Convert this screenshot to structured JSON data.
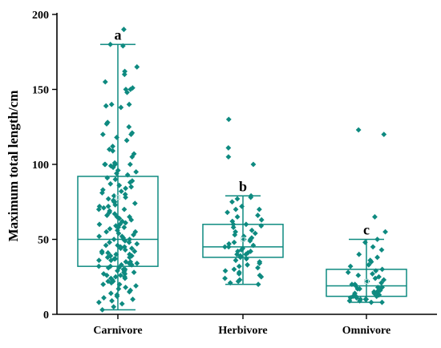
{
  "colors": {
    "series": "#0e8a80",
    "mean_marker": "#b9dcd8",
    "axis": "#000000"
  },
  "chart_data": {
    "type": "boxplot",
    "title": "",
    "xlabel": "",
    "ylabel": "Maximum total length/cm",
    "ylim": [
      0,
      200
    ],
    "yticks": [
      0,
      50,
      100,
      150,
      200
    ],
    "categories": [
      "Carnivore",
      "Herbivore",
      "Omnivore"
    ],
    "groups": [
      {
        "name": "Carnivore",
        "letter": "a",
        "whisker_low": 3,
        "q1": 32,
        "median": 50,
        "q3": 92,
        "whisker_high": 180,
        "mean": 78,
        "points": [
          190,
          180,
          179,
          165,
          162,
          160,
          155,
          151,
          150,
          150,
          148,
          140,
          140,
          139,
          138,
          128,
          127,
          125,
          121,
          120,
          120,
          118,
          116,
          112,
          110,
          109,
          107,
          105,
          101,
          100,
          100,
          100,
          100,
          99,
          98,
          96,
          95,
          94,
          93,
          91,
          90,
          89,
          88,
          87,
          86,
          85,
          84,
          83,
          82,
          81,
          80,
          79,
          78,
          77,
          76,
          75,
          75,
          74,
          73,
          72,
          72,
          71,
          70,
          70,
          69,
          68,
          67,
          66,
          65,
          65,
          64,
          63,
          62,
          61,
          60,
          60,
          59,
          58,
          58,
          57,
          56,
          55,
          55,
          54,
          53,
          52,
          52,
          51,
          50,
          50,
          50,
          49,
          48,
          48,
          47,
          46,
          46,
          45,
          45,
          44,
          44,
          43,
          42,
          42,
          41,
          41,
          40,
          40,
          39,
          39,
          38,
          38,
          37,
          37,
          36,
          36,
          35,
          35,
          34,
          34,
          33,
          33,
          32,
          32,
          31,
          31,
          30,
          30,
          29,
          29,
          28,
          28,
          27,
          27,
          26,
          26,
          25,
          25,
          24,
          24,
          23,
          22,
          22,
          21,
          20,
          20,
          19,
          18,
          17,
          16,
          15,
          14,
          13,
          12,
          11,
          10,
          9,
          8,
          7,
          5,
          3
        ]
      },
      {
        "name": "Herbivore",
        "letter": "b",
        "whisker_low": 20,
        "q1": 38,
        "median": 45,
        "q3": 60,
        "whisker_high": 79,
        "mean": 50,
        "points": [
          130,
          111,
          105,
          100,
          79,
          78,
          77,
          75,
          72,
          70,
          70,
          68,
          66,
          65,
          63,
          62,
          60,
          60,
          59,
          58,
          56,
          55,
          54,
          53,
          52,
          51,
          50,
          50,
          49,
          48,
          47,
          46,
          45,
          45,
          44,
          43,
          42,
          42,
          41,
          40,
          40,
          39,
          38,
          37,
          36,
          35,
          34,
          33,
          32,
          31,
          30,
          29,
          28,
          27,
          26,
          25,
          24,
          23,
          22,
          21,
          20
        ]
      },
      {
        "name": "Omnivore",
        "letter": "c",
        "whisker_low": 8,
        "q1": 12,
        "median": 19,
        "q3": 30,
        "whisker_high": 50,
        "mean": 22,
        "points": [
          123,
          120,
          65,
          55,
          50,
          48,
          45,
          43,
          40,
          38,
          36,
          35,
          33,
          32,
          30,
          29,
          28,
          27,
          26,
          25,
          24,
          23,
          22,
          21,
          20,
          20,
          19,
          18,
          18,
          17,
          17,
          16,
          15,
          15,
          14,
          14,
          13,
          13,
          12,
          12,
          12,
          11,
          11,
          10,
          10,
          10,
          9,
          9,
          8,
          8
        ]
      }
    ]
  }
}
